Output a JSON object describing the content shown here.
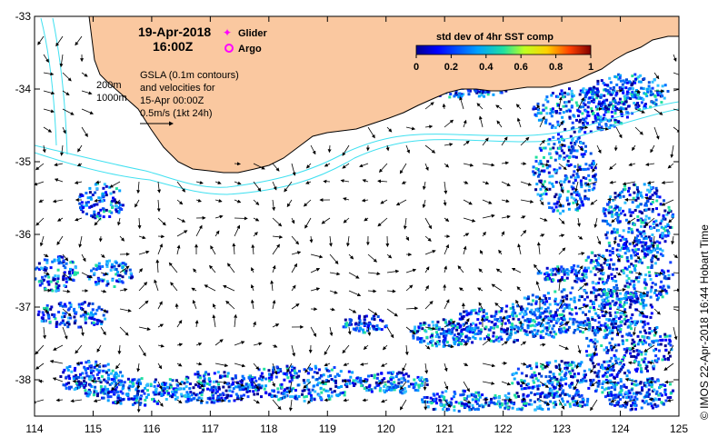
{
  "map": {
    "title_date": "19-Apr-2018",
    "title_time": "16:00Z",
    "legend_glider": "Glider",
    "legend_argo": "Argo",
    "glider_color": "#ff00ff",
    "argo_color": "#ff00ff",
    "contour_label_200": "200m",
    "contour_label_1000": "1000m",
    "gsla_line1": "GSLA (0.1m contours)",
    "gsla_line2": "and velocities for",
    "gsla_line3": "15-Apr 00:00Z",
    "gsla_line4": "0.5m/s (1kt 24h)",
    "colorbar_title": "std dev of 4hr SST comp",
    "colorbar_ticks": [
      "0",
      "0.2",
      "0.4",
      "0.6",
      "0.8",
      "1"
    ],
    "credit": "© IMOS 22-Apr-2018 16:44 Hobart Time",
    "x_ticks": [
      "114",
      "115",
      "116",
      "117",
      "118",
      "119",
      "120",
      "121",
      "122",
      "123",
      "124",
      "125"
    ],
    "y_ticks": [
      "-33",
      "-34",
      "-35",
      "-36",
      "-37",
      "-38"
    ],
    "land_color": "#fac8a0",
    "contour_color": "#40e0f0",
    "lon_range": [
      114,
      125
    ],
    "lat_range": [
      -38.5,
      -33
    ]
  }
}
